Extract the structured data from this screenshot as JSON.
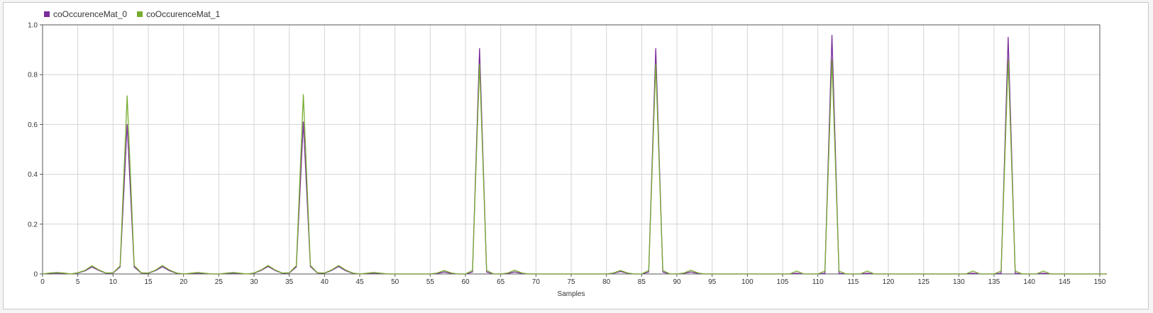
{
  "chart_data": {
    "type": "line",
    "title": "",
    "xlabel": "Samples",
    "ylabel": "",
    "xlim": [
      0,
      150
    ],
    "ylim": [
      0,
      1
    ],
    "xticks": [
      0,
      5,
      10,
      15,
      20,
      25,
      30,
      35,
      40,
      45,
      50,
      55,
      60,
      65,
      70,
      75,
      80,
      85,
      90,
      95,
      100,
      105,
      110,
      115,
      120,
      125,
      130,
      135,
      140,
      145,
      150
    ],
    "yticks": [
      0,
      0.2,
      0.4,
      0.6,
      0.8,
      1
    ],
    "ytick_labels": [
      "0",
      "0.2",
      "0.4",
      "0.6",
      "0.8",
      "1.0"
    ],
    "grid": true,
    "legend_position": "top-left",
    "series": [
      {
        "name": "coOccurenceMat_0",
        "color": "#7b2d9b",
        "values": [
          0,
          0.003,
          0.004,
          0.003,
          0,
          0.004,
          0.012,
          0.028,
          0.014,
          0.003,
          0.004,
          0.028,
          0.6,
          0.028,
          0.004,
          0.003,
          0.013,
          0.029,
          0.013,
          0.003,
          0,
          0.002,
          0.004,
          0.002,
          0,
          0,
          0.002,
          0.004,
          0.002,
          0,
          0.003,
          0.014,
          0.03,
          0.014,
          0.003,
          0.004,
          0.028,
          0.61,
          0.03,
          0.004,
          0.003,
          0.014,
          0.03,
          0.013,
          0.003,
          0,
          0.002,
          0.004,
          0.002,
          0,
          0,
          0,
          0,
          0,
          0,
          0,
          0.002,
          0.008,
          0.002,
          0,
          0,
          0.008,
          0.905,
          0.008,
          0,
          0,
          0.002,
          0.008,
          0.002,
          0,
          0,
          0,
          0,
          0,
          0,
          0,
          0,
          0,
          0,
          0,
          0,
          0.003,
          0.01,
          0.003,
          0,
          0,
          0.008,
          0.905,
          0.008,
          0,
          0,
          0.003,
          0.008,
          0.002,
          0,
          0,
          0,
          0,
          0,
          0,
          0,
          0,
          0,
          0,
          0,
          0,
          0,
          0.003,
          0,
          0,
          0,
          0.003,
          0.958,
          0.003,
          0,
          0,
          0,
          0.003,
          0,
          0,
          0,
          0,
          0,
          0,
          0,
          0,
          0,
          0,
          0,
          0,
          0,
          0,
          0.003,
          0,
          0,
          0,
          0.003,
          0.95,
          0.003,
          0,
          0,
          0,
          0.003,
          0,
          0,
          0,
          0,
          0,
          0,
          0,
          0,
          0
        ]
      },
      {
        "name": "coOccurenceMat_1",
        "color": "#77ac30",
        "values": [
          0,
          0.004,
          0.006,
          0.004,
          0,
          0.005,
          0.014,
          0.033,
          0.016,
          0.004,
          0.005,
          0.032,
          0.715,
          0.034,
          0.005,
          0.004,
          0.015,
          0.034,
          0.016,
          0.004,
          0,
          0.003,
          0.006,
          0.003,
          0,
          0,
          0.003,
          0.006,
          0.003,
          0,
          0.004,
          0.016,
          0.034,
          0.016,
          0.004,
          0.005,
          0.033,
          0.72,
          0.034,
          0.005,
          0.004,
          0.016,
          0.034,
          0.016,
          0.004,
          0,
          0.003,
          0.006,
          0.003,
          0,
          0,
          0,
          0,
          0,
          0,
          0,
          0.004,
          0.014,
          0.004,
          0,
          0,
          0.014,
          0.842,
          0.014,
          0,
          0,
          0.004,
          0.015,
          0.004,
          0,
          0,
          0,
          0,
          0,
          0,
          0,
          0,
          0,
          0,
          0,
          0,
          0.004,
          0.014,
          0.004,
          0,
          0,
          0.014,
          0.842,
          0.014,
          0,
          0,
          0.004,
          0.015,
          0.004,
          0,
          0,
          0,
          0,
          0,
          0,
          0,
          0,
          0,
          0,
          0,
          0,
          0,
          0.012,
          0,
          0,
          0,
          0.012,
          0.86,
          0.012,
          0,
          0,
          0,
          0.012,
          0,
          0,
          0,
          0,
          0,
          0,
          0,
          0,
          0,
          0,
          0,
          0,
          0,
          0,
          0.012,
          0,
          0,
          0,
          0.012,
          0.86,
          0.012,
          0,
          0,
          0,
          0.012,
          0,
          0,
          0,
          0,
          0,
          0,
          0,
          0,
          0
        ]
      }
    ]
  }
}
